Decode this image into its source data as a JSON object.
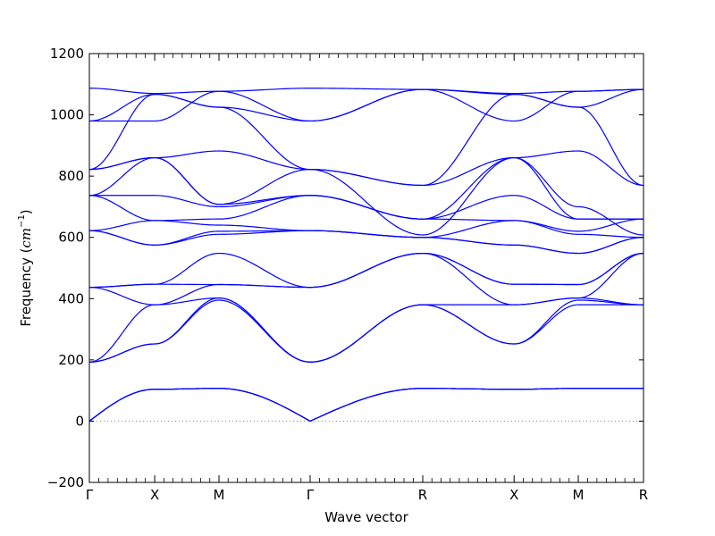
{
  "chart_data": {
    "type": "line",
    "title": "",
    "xlabel": "Wave vector",
    "ylabel": "Frequency (cm⁻¹)",
    "ylabel_prefix": "Frequency (",
    "ylabel_units_base": "cm",
    "ylabel_units_exp": "−1",
    "ylabel_suffix": ")",
    "ylim": [
      -200,
      1200
    ],
    "yticks": [
      -200,
      0,
      200,
      400,
      600,
      800,
      1000,
      1200
    ],
    "ytick_labels": [
      "−200",
      "0",
      "200",
      "400",
      "600",
      "800",
      "1000",
      "1200"
    ],
    "xlim": [
      0,
      1
    ],
    "high_symmetry_points": [
      {
        "label": "Γ",
        "x": 0.0
      },
      {
        "label": "X",
        "x": 0.1179
      },
      {
        "label": "M",
        "x": 0.2339
      },
      {
        "label": "Γ",
        "x": 0.3984
      },
      {
        "label": "R",
        "x": 0.6016
      },
      {
        "label": "X",
        "x": 0.7665
      },
      {
        "label": "M",
        "x": 0.8823
      },
      {
        "label": "R",
        "x": 1.0
      }
    ],
    "zero_line": {
      "y": 0,
      "style": "dotted",
      "color": "#808080"
    },
    "line_color": "#0000ff",
    "segments": [
      {
        "from": "Γ",
        "to": "X",
        "start": [
          0,
          0,
          0,
          193,
          193,
          193,
          437,
          437,
          437,
          622,
          622,
          622,
          737,
          737,
          737,
          822,
          822,
          822,
          980,
          980,
          1087
        ],
        "end": [
          104,
          104,
          104,
          252,
          252,
          380,
          380,
          447,
          447,
          575,
          575,
          655,
          655,
          737,
          860,
          860,
          860,
          1067,
          1067,
          980,
          1070
        ]
      },
      {
        "from": "X",
        "to": "M",
        "start": [
          104,
          104,
          104,
          252,
          252,
          380,
          380,
          447,
          447,
          575,
          575,
          655,
          655,
          737,
          860,
          860,
          860,
          1067,
          1067,
          980,
          1070
        ],
        "end": [
          107,
          107,
          107,
          395,
          402,
          402,
          446,
          446,
          548,
          610,
          620,
          640,
          660,
          700,
          708,
          708,
          882,
          1025,
          1025,
          1077,
          1077
        ]
      },
      {
        "from": "M",
        "to": "Γ",
        "start": [
          107,
          107,
          107,
          395,
          402,
          402,
          446,
          446,
          548,
          610,
          620,
          640,
          660,
          700,
          708,
          708,
          882,
          1025,
          1025,
          1077,
          1077
        ],
        "end": [
          0,
          0,
          0,
          193,
          193,
          193,
          437,
          437,
          437,
          622,
          622,
          622,
          737,
          737,
          737,
          822,
          822,
          822,
          980,
          980,
          1087
        ]
      },
      {
        "from": "Γ",
        "to": "R",
        "start": [
          0,
          0,
          0,
          193,
          193,
          193,
          437,
          437,
          437,
          622,
          622,
          622,
          737,
          737,
          737,
          822,
          822,
          822,
          980,
          980,
          1087
        ],
        "end": [
          107,
          107,
          107,
          380,
          380,
          380,
          548,
          548,
          548,
          600,
          600,
          600,
          660,
          660,
          660,
          608,
          770,
          770,
          1083,
          1083,
          1083
        ]
      },
      {
        "from": "R",
        "to": "X",
        "start": [
          107,
          107,
          107,
          380,
          380,
          380,
          548,
          548,
          548,
          600,
          600,
          600,
          660,
          660,
          660,
          608,
          770,
          770,
          1083,
          1083,
          1083
        ],
        "end": [
          104,
          104,
          104,
          252,
          252,
          380,
          380,
          447,
          447,
          575,
          575,
          655,
          655,
          737,
          860,
          860,
          860,
          1067,
          1067,
          980,
          1070
        ]
      },
      {
        "from": "X",
        "to": "M",
        "start": [
          104,
          104,
          104,
          252,
          252,
          380,
          380,
          447,
          447,
          575,
          575,
          655,
          655,
          737,
          860,
          860,
          860,
          1067,
          1067,
          980,
          1070
        ],
        "end": [
          107,
          107,
          107,
          380,
          395,
          402,
          402,
          446,
          446,
          548,
          548,
          610,
          620,
          660,
          660,
          700,
          882,
          1025,
          1025,
          1077,
          1077
        ]
      },
      {
        "from": "M",
        "to": "R",
        "start": [
          107,
          107,
          107,
          380,
          395,
          402,
          402,
          446,
          446,
          548,
          548,
          610,
          620,
          660,
          660,
          700,
          882,
          1025,
          1025,
          1077,
          1077
        ],
        "end": [
          107,
          107,
          107,
          380,
          380,
          380,
          548,
          548,
          548,
          600,
          600,
          600,
          660,
          660,
          660,
          608,
          770,
          770,
          1083,
          1083,
          1083
        ]
      }
    ]
  }
}
